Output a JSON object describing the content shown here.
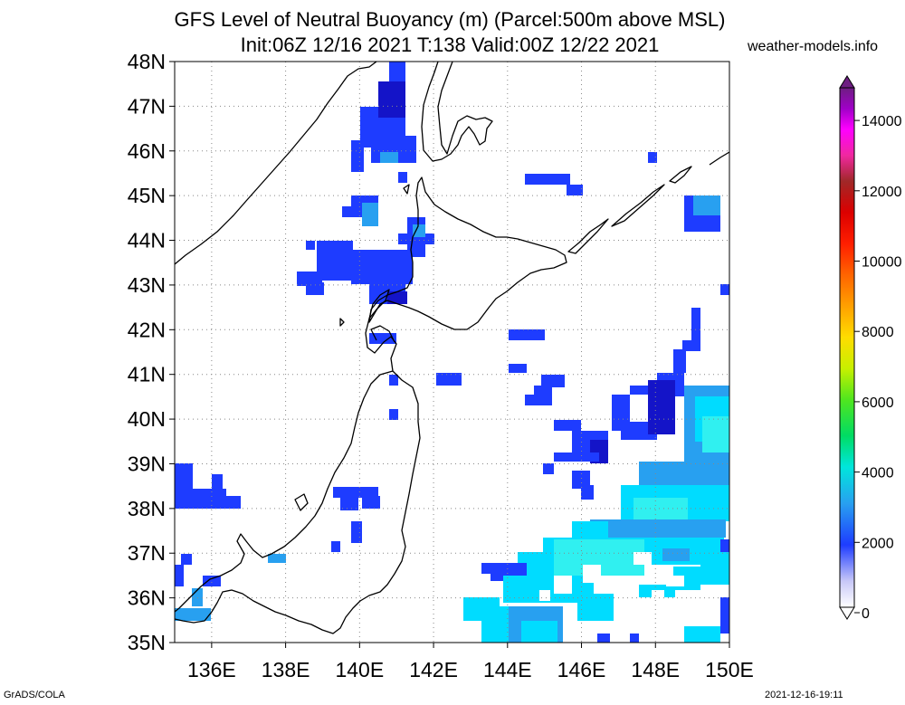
{
  "header": {
    "title_line1": "GFS Level of Neutral Buoyancy (m) (Parcel:500m above MSL)",
    "title_line2": "Init:06Z 12/16 2021 T:138 Valid:00Z 12/22 2021",
    "site": "weather-models.info"
  },
  "footer": {
    "left": "GrADS/COLA",
    "right": "2021-12-16-19:11"
  },
  "map": {
    "lat_labels": [
      "35N",
      "36N",
      "37N",
      "38N",
      "39N",
      "40N",
      "41N",
      "42N",
      "43N",
      "44N",
      "45N",
      "46N",
      "47N",
      "48N"
    ],
    "lon_labels": [
      "136E",
      "138E",
      "140E",
      "142E",
      "144E",
      "146E",
      "148E",
      "150E"
    ]
  },
  "colorbar": {
    "labels": [
      "0",
      "2000",
      "4000",
      "6000",
      "8000",
      "10000",
      "12000",
      "14000"
    ]
  },
  "colors": {
    "blue": "#1e3cff",
    "deep_blue": "#1414c8",
    "light_blue": "#28a0f0",
    "cyan": "#00dcff",
    "cyan2": "#30f0f0"
  }
}
